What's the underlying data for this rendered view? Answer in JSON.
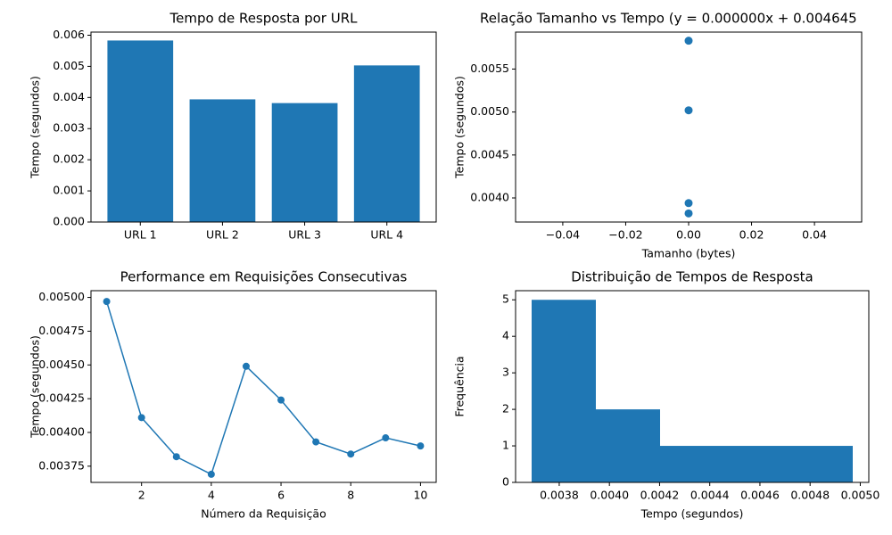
{
  "chart_data": [
    {
      "type": "bar",
      "title": "Tempo de Resposta por URL",
      "y_label": "Tempo (segundos)",
      "categories": [
        "URL 1",
        "URL 2",
        "URL 3",
        "URL 4"
      ],
      "values": [
        0.00583,
        0.00394,
        0.00382,
        0.00503
      ],
      "color": "#1f77b4",
      "ylim": [
        0,
        0.0061
      ],
      "yticks": [
        {
          "value": 0,
          "label": "0.000"
        },
        0.001,
        0.002,
        0.003,
        0.004,
        0.005,
        0.006
      ]
    },
    {
      "type": "scatter",
      "title": "Relação Tamanho vs Tempo (y = 0.000000x + 0.004645",
      "x_label": "Tamanho (bytes)",
      "y_label": "Tempo (segundos)",
      "x": [
        0,
        0,
        0,
        0
      ],
      "values": [
        0.00583,
        0.00394,
        0.00382,
        0.00502
      ],
      "color": "#1f77b4",
      "xlim": [
        -0.055,
        0.055
      ],
      "ylim": [
        0.00372,
        0.00593
      ],
      "xticks": [
        {
          "value": -0.04,
          "label": "−0.04"
        },
        {
          "value": -0.02,
          "label": "−0.02"
        },
        {
          "value": 0,
          "label": "0.00"
        },
        0.02,
        0.04
      ],
      "yticks": [
        {
          "value": 0.004,
          "label": "0.0040"
        },
        0.0045,
        {
          "value": 0.005,
          "label": "0.0050"
        },
        0.0055
      ]
    },
    {
      "type": "line",
      "title": "Performance em Requisições Consecutivas",
      "x_label": "Número da Requisição",
      "y_label": "Tempo (segundos)",
      "x": [
        1,
        2,
        3,
        4,
        5,
        6,
        7,
        8,
        9,
        10
      ],
      "values": [
        0.00497,
        0.00411,
        0.00382,
        0.00369,
        0.00449,
        0.00424,
        0.00393,
        0.00384,
        0.00396,
        0.0039
      ],
      "color": "#1f77b4",
      "xlim": [
        0.55,
        10.45
      ],
      "ylim": [
        0.00363,
        0.00505
      ],
      "xticks": [
        2,
        4,
        6,
        8,
        10
      ],
      "yticks": [
        0.00375,
        {
          "value": 0.004,
          "label": "0.00400"
        },
        0.00425,
        {
          "value": 0.0045,
          "label": "0.00450"
        },
        0.00475,
        {
          "value": 0.005,
          "label": "0.00500"
        }
      ]
    },
    {
      "type": "histogram",
      "title": "Distribuição de Tempos de Resposta",
      "x_label": "Tempo (segundos)",
      "y_label": "Frequência",
      "bins": [
        0.00369,
        0.003946,
        0.004202,
        0.004458,
        0.004714,
        0.00497
      ],
      "values": [
        5,
        2,
        1,
        1,
        1
      ],
      "color": "#1f77b4",
      "xlim": [
        0.003626,
        0.005034
      ],
      "ylim": [
        0,
        5.25
      ],
      "xticks": [
        0.0038,
        {
          "value": 0.004,
          "label": "0.0040"
        },
        0.0042,
        0.0044,
        0.0046,
        0.0048,
        {
          "value": 0.005,
          "label": "0.0050"
        }
      ],
      "yticks": [
        0,
        1,
        2,
        3,
        4,
        5
      ]
    }
  ]
}
